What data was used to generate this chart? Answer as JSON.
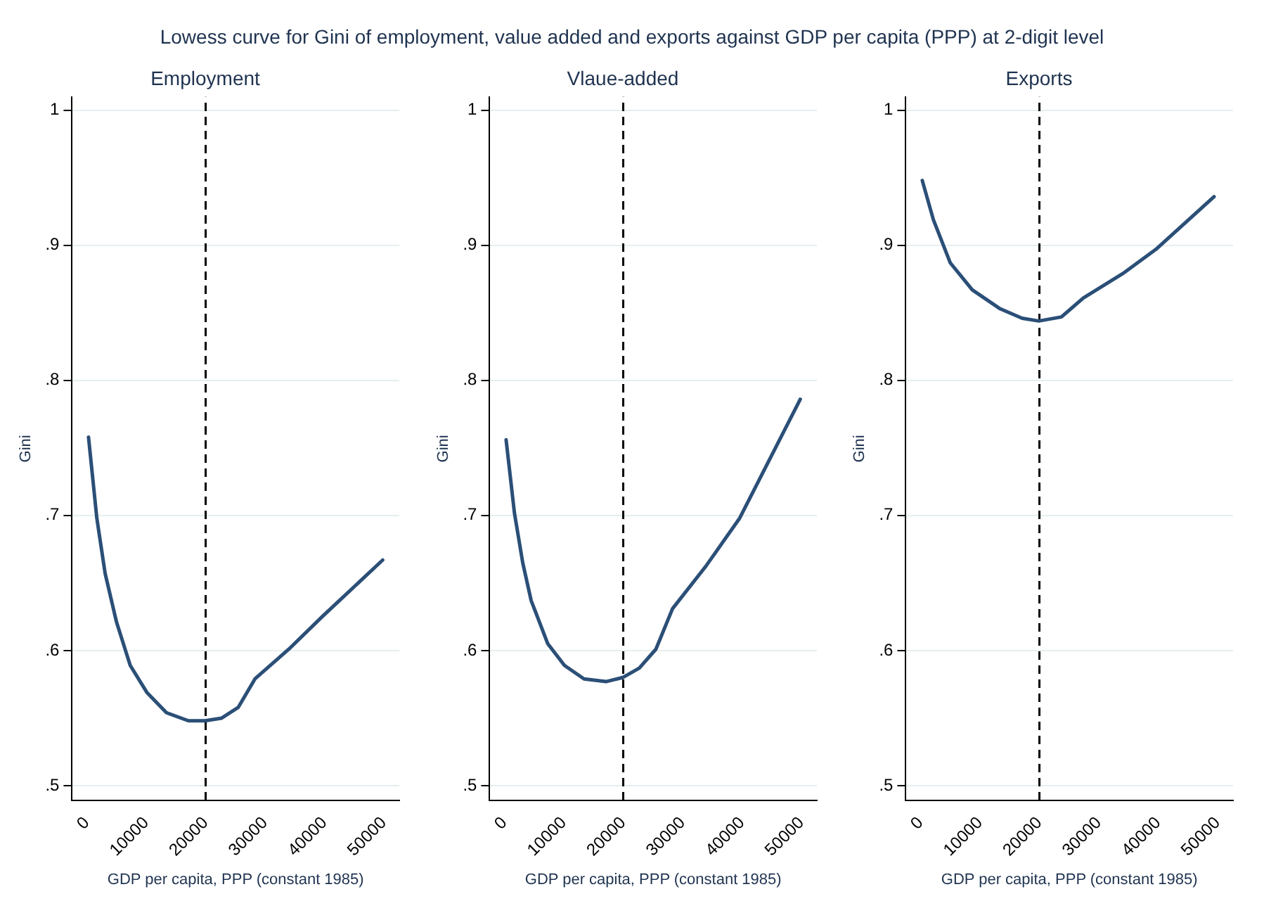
{
  "chart_data": [
    {
      "type": "line",
      "title": "Employment",
      "xlabel": "GDP per capita, PPP (constant 1985)",
      "ylabel": "Gini",
      "annotations": [
        "Lowess curve for Gini of employment, value added and exports against GDP per capita (PPP) at 2-digit level"
      ],
      "x": [
        280,
        1680,
        3080,
        5000,
        7300,
        10100,
        13400,
        17100,
        19900,
        22700,
        25500,
        28300,
        34000,
        39600,
        49800
      ],
      "series": [
        {
          "color": "#2b4f77",
          "values": [
            0.758,
            0.698,
            0.657,
            0.621,
            0.589,
            0.569,
            0.554,
            0.548,
            0.548,
            0.55,
            0.558,
            0.579,
            0.601,
            0.625,
            0.667
          ]
        }
      ],
      "xlim": [
        -2500,
        52600
      ],
      "xticks": [
        0,
        10000,
        20000,
        30000,
        40000,
        50000
      ],
      "ylim": [
        0.489,
        1.01
      ],
      "yticks": [
        {
          "value": 0.5,
          "label": ".5"
        },
        {
          "value": 0.6,
          "label": ".6"
        },
        {
          "value": 0.7,
          "label": ".7"
        },
        {
          "value": 0.8,
          "label": ".8"
        },
        {
          "value": 0.9,
          "label": ".9"
        },
        {
          "value": 1,
          "label": "1"
        }
      ],
      "ref_lines": [
        {
          "axis": "x",
          "value": 20000,
          "label": null,
          "line_style": "dashed",
          "color": "#000000"
        }
      ],
      "grid": "y",
      "marker": "none",
      "line_style": "solid",
      "legend": false
    },
    {
      "type": "line",
      "title": "Vlaue-added",
      "xlabel": "GDP per capita, PPP (constant 1985)",
      "ylabel": "Gini",
      "x": [
        280,
        1680,
        3080,
        4500,
        7300,
        10100,
        13400,
        17100,
        19900,
        22700,
        25500,
        28300,
        34000,
        39600,
        49800
      ],
      "series": [
        {
          "color": "#2b4f77",
          "values": [
            0.756,
            0.702,
            0.665,
            0.637,
            0.605,
            0.589,
            0.579,
            0.577,
            0.58,
            0.587,
            0.601,
            0.631,
            0.663,
            0.698,
            0.786
          ]
        }
      ],
      "xlim": [
        -2500,
        52600
      ],
      "xticks": [
        0,
        10000,
        20000,
        30000,
        40000,
        50000
      ],
      "ylim": [
        0.489,
        1.01
      ],
      "yticks": [
        {
          "value": 0.5,
          "label": ".5"
        },
        {
          "value": 0.6,
          "label": ".6"
        },
        {
          "value": 0.7,
          "label": ".7"
        },
        {
          "value": 0.8,
          "label": ".8"
        },
        {
          "value": 0.9,
          "label": ".9"
        },
        {
          "value": 1,
          "label": "1"
        }
      ],
      "ref_lines": [
        {
          "axis": "x",
          "value": 20000,
          "label": null,
          "line_style": "dashed",
          "color": "#000000"
        }
      ],
      "grid": "y",
      "marker": "none",
      "line_style": "solid",
      "legend": false
    },
    {
      "type": "line",
      "title": "Exports",
      "xlabel": "GDP per capita, PPP (constant 1985)",
      "ylabel": "Gini",
      "x": [
        280,
        2150,
        5000,
        8700,
        13400,
        17100,
        19900,
        23700,
        27400,
        34000,
        39600,
        49400
      ],
      "series": [
        {
          "color": "#2b4f77",
          "values": [
            0.948,
            0.919,
            0.887,
            0.867,
            0.853,
            0.846,
            0.844,
            0.847,
            0.861,
            0.879,
            0.897,
            0.936
          ]
        }
      ],
      "xlim": [
        -2500,
        52600
      ],
      "xticks": [
        0,
        10000,
        20000,
        30000,
        40000,
        50000
      ],
      "ylim": [
        0.489,
        1.01
      ],
      "yticks": [
        {
          "value": 0.5,
          "label": ".5"
        },
        {
          "value": 0.6,
          "label": ".6"
        },
        {
          "value": 0.7,
          "label": ".7"
        },
        {
          "value": 0.8,
          "label": ".8"
        },
        {
          "value": 0.9,
          "label": ".9"
        },
        {
          "value": 1,
          "label": "1"
        }
      ],
      "ref_lines": [
        {
          "axis": "x",
          "value": 20000,
          "label": null,
          "line_style": "dashed",
          "color": "#000000"
        }
      ],
      "grid": "y",
      "marker": "none",
      "line_style": "solid",
      "legend": false
    }
  ]
}
